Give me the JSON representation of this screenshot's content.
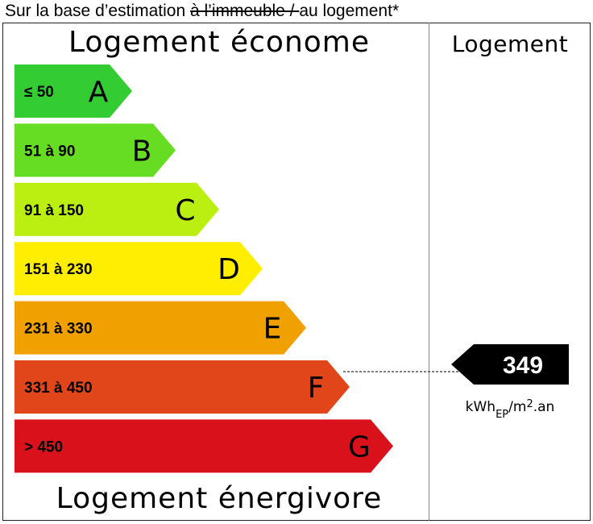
{
  "caption": {
    "before": "Sur la base d’estimation ",
    "struck": "à l’immeuble / ",
    "after": "au logement*"
  },
  "header_left": "Logement économe",
  "header_right": "Logement",
  "footer_left": "Logement énergivore",
  "chart_data": {
    "type": "bar",
    "categories": [
      "A",
      "B",
      "C",
      "D",
      "E",
      "F",
      "G"
    ],
    "ranges": [
      "≤ 50",
      "51 à 90",
      "91 à 150",
      "151 à 230",
      "231 à 330",
      "331 à 450",
      "> 450"
    ],
    "colors": [
      "#33cc33",
      "#66dd22",
      "#bbee11",
      "#ffee00",
      "#f0a000",
      "#e0461a",
      "#d9111b"
    ],
    "range_text_colors": [
      "#000000",
      "#000000",
      "#000000",
      "#000000",
      "#000000",
      "#000000",
      "#ffffff"
    ],
    "letter_text_colors": [
      "#000000",
      "#000000",
      "#000000",
      "#000000",
      "#000000",
      "#ffffff",
      "#ffffff"
    ],
    "value": 349,
    "value_class": "F",
    "unit": {
      "main": "kWh",
      "sub": "EP",
      "rest": "/m",
      "sup": "2",
      "tail": ".an"
    }
  }
}
